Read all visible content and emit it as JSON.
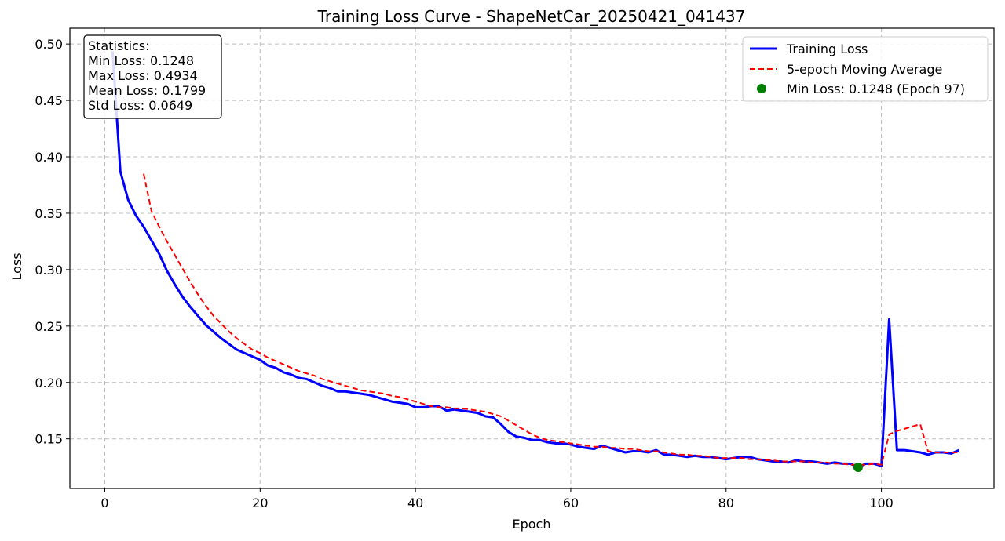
{
  "chart_data": {
    "type": "line",
    "title": "Training Loss Curve - ShapeNetCar_20250421_041437",
    "xlabel": "Epoch",
    "ylabel": "Loss",
    "xlim": [
      -4.5,
      114.5
    ],
    "ylim": [
      0.106,
      0.514
    ],
    "xticks": [
      0,
      20,
      40,
      60,
      80,
      100
    ],
    "yticks": [
      0.15,
      0.2,
      0.25,
      0.3,
      0.35,
      0.4,
      0.45,
      0.5
    ],
    "ytick_labels": [
      "0.15",
      "0.20",
      "0.25",
      "0.30",
      "0.35",
      "0.40",
      "0.45",
      "0.50"
    ],
    "grid": true,
    "legend_position": "top-right",
    "series": [
      {
        "name": "Training Loss",
        "style": "solid",
        "color": "#0000ff",
        "x": [
          1,
          2,
          3,
          4,
          5,
          6,
          7,
          8,
          9,
          10,
          11,
          12,
          13,
          14,
          15,
          16,
          17,
          18,
          19,
          20,
          21,
          22,
          23,
          24,
          25,
          26,
          27,
          28,
          29,
          30,
          31,
          32,
          33,
          34,
          35,
          36,
          37,
          38,
          39,
          40,
          41,
          42,
          43,
          44,
          45,
          46,
          47,
          48,
          49,
          50,
          51,
          52,
          53,
          54,
          55,
          56,
          57,
          58,
          59,
          60,
          61,
          62,
          63,
          64,
          65,
          66,
          67,
          68,
          69,
          70,
          71,
          72,
          73,
          74,
          75,
          76,
          77,
          78,
          79,
          80,
          81,
          82,
          83,
          84,
          85,
          86,
          87,
          88,
          89,
          90,
          91,
          92,
          93,
          94,
          95,
          96,
          97,
          98,
          99,
          100,
          101,
          102,
          103,
          104,
          105,
          106,
          107,
          108,
          109,
          110
        ],
        "y": [
          0.4934,
          0.387,
          0.362,
          0.348,
          0.338,
          0.326,
          0.314,
          0.299,
          0.287,
          0.276,
          0.267,
          0.259,
          0.251,
          0.245,
          0.239,
          0.234,
          0.229,
          0.226,
          0.223,
          0.22,
          0.215,
          0.213,
          0.209,
          0.207,
          0.204,
          0.203,
          0.2,
          0.197,
          0.195,
          0.192,
          0.192,
          0.191,
          0.19,
          0.189,
          0.187,
          0.185,
          0.183,
          0.182,
          0.181,
          0.178,
          0.178,
          0.179,
          0.179,
          0.175,
          0.176,
          0.175,
          0.174,
          0.173,
          0.17,
          0.169,
          0.163,
          0.156,
          0.152,
          0.151,
          0.149,
          0.149,
          0.147,
          0.146,
          0.146,
          0.145,
          0.143,
          0.142,
          0.141,
          0.144,
          0.142,
          0.14,
          0.138,
          0.139,
          0.139,
          0.138,
          0.14,
          0.136,
          0.136,
          0.135,
          0.134,
          0.135,
          0.134,
          0.134,
          0.133,
          0.132,
          0.133,
          0.134,
          0.134,
          0.132,
          0.131,
          0.13,
          0.13,
          0.129,
          0.131,
          0.13,
          0.13,
          0.129,
          0.128,
          0.129,
          0.128,
          0.128,
          0.1248,
          0.128,
          0.128,
          0.126,
          0.256,
          0.14,
          0.14,
          0.139,
          0.138,
          0.136,
          0.138,
          0.138,
          0.137,
          0.14
        ]
      },
      {
        "name": "5-epoch Moving Average",
        "style": "dashed",
        "color": "#ff0000",
        "x": [
          5,
          6,
          7,
          8,
          9,
          10,
          11,
          12,
          13,
          14,
          15,
          16,
          17,
          18,
          19,
          20,
          21,
          22,
          23,
          24,
          25,
          26,
          27,
          28,
          29,
          30,
          31,
          32,
          33,
          34,
          35,
          36,
          37,
          38,
          39,
          40,
          41,
          42,
          43,
          44,
          45,
          46,
          47,
          48,
          49,
          50,
          51,
          52,
          53,
          54,
          55,
          56,
          57,
          58,
          59,
          60,
          61,
          62,
          63,
          64,
          65,
          66,
          67,
          68,
          69,
          70,
          71,
          72,
          73,
          74,
          75,
          76,
          77,
          78,
          79,
          80,
          81,
          82,
          83,
          84,
          85,
          86,
          87,
          88,
          89,
          90,
          91,
          92,
          93,
          94,
          95,
          96,
          97,
          98,
          99,
          100,
          101,
          102,
          103,
          104,
          105,
          106,
          107,
          108,
          109,
          110
        ],
        "y": [
          0.385,
          0.352,
          0.338,
          0.325,
          0.313,
          0.301,
          0.289,
          0.278,
          0.268,
          0.259,
          0.252,
          0.245,
          0.239,
          0.234,
          0.229,
          0.226,
          0.222,
          0.219,
          0.216,
          0.213,
          0.21,
          0.208,
          0.206,
          0.203,
          0.201,
          0.199,
          0.197,
          0.195,
          0.193,
          0.192,
          0.191,
          0.19,
          0.188,
          0.187,
          0.185,
          0.183,
          0.181,
          0.179,
          0.178,
          0.178,
          0.177,
          0.177,
          0.176,
          0.175,
          0.174,
          0.172,
          0.17,
          0.166,
          0.162,
          0.158,
          0.154,
          0.151,
          0.149,
          0.148,
          0.147,
          0.146,
          0.145,
          0.144,
          0.143,
          0.143,
          0.142,
          0.142,
          0.141,
          0.141,
          0.14,
          0.139,
          0.139,
          0.138,
          0.137,
          0.136,
          0.136,
          0.135,
          0.135,
          0.134,
          0.133,
          0.133,
          0.133,
          0.133,
          0.132,
          0.132,
          0.131,
          0.131,
          0.13,
          0.13,
          0.13,
          0.13,
          0.129,
          0.129,
          0.129,
          0.128,
          0.128,
          0.127,
          0.127,
          0.127,
          0.128,
          0.127,
          0.154,
          0.157,
          0.159,
          0.161,
          0.163,
          0.139,
          0.138,
          0.138,
          0.138,
          0.138
        ]
      }
    ],
    "min_point": {
      "name": "Min Loss: 0.1248 (Epoch 97)",
      "x": 97,
      "y": 0.1248,
      "color": "#008000"
    },
    "stats_box": {
      "lines": [
        "Statistics:",
        "Min Loss: 0.1248",
        "Max Loss: 0.4934",
        "Mean Loss: 0.1799",
        "Std Loss: 0.0649"
      ]
    }
  }
}
